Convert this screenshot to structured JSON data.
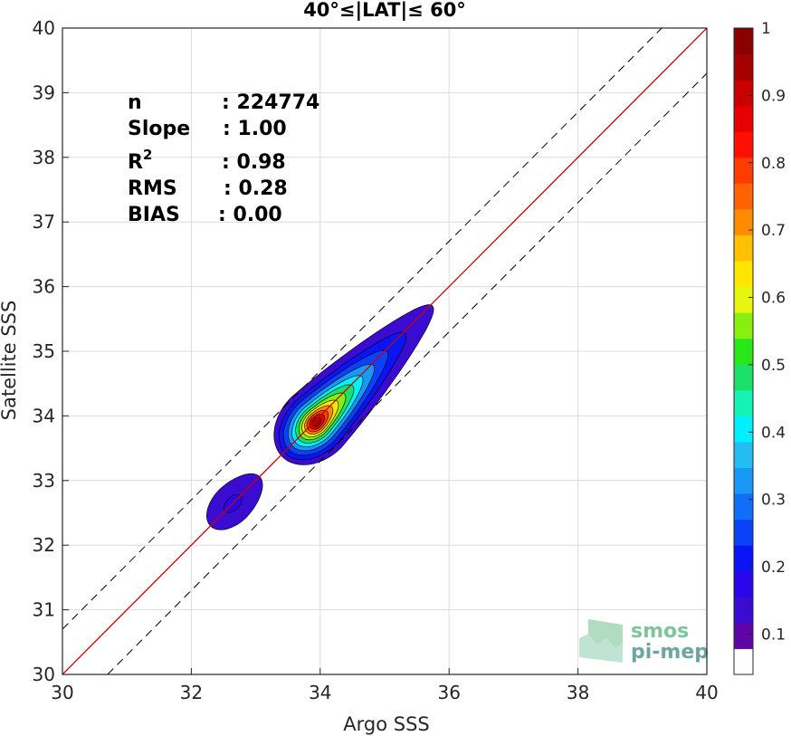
{
  "chart_data": {
    "type": "heatmap",
    "title": "40°≤|LAT|≤ 60°",
    "xlabel": "Argo SSS",
    "ylabel": "Satellite SSS",
    "xlim": [
      30,
      40
    ],
    "ylim": [
      30,
      40
    ],
    "x_ticks": [
      "30",
      "32",
      "34",
      "36",
      "38",
      "40"
    ],
    "y_ticks": [
      "30",
      "31",
      "32",
      "33",
      "34",
      "35",
      "36",
      "37",
      "38",
      "39",
      "40"
    ],
    "grid": true,
    "reference_line": {
      "slope": 1,
      "intercept": 0,
      "color": "#cc0000"
    },
    "bounds_lines": {
      "offset": 0.7,
      "style": "dashed"
    },
    "stats": [
      {
        "label": "n",
        "value": ": 224774"
      },
      {
        "label": "Slope",
        "value": ": 1.00"
      },
      {
        "label": "R",
        "sup": "2",
        "value": ": 0.98"
      },
      {
        "label": "RMS",
        "value": ": 0.28"
      },
      {
        "label": "BIAS",
        "value": ": 0.00"
      }
    ],
    "density_clusters": [
      {
        "center": [
          33.92,
          33.92
        ],
        "peak": 0.95
      },
      {
        "center": [
          32.65,
          32.65
        ],
        "peak": 0.2
      }
    ],
    "colorbar": {
      "ticks": [
        "0.1",
        "0.2",
        "0.3",
        "0.4",
        "0.5",
        "0.6",
        "0.7",
        "0.8",
        "0.9",
        "1"
      ],
      "colors": [
        "#ffffff",
        "#5e05a8",
        "#3a0bd0",
        "#2a06e8",
        "#0b14f5",
        "#0a43f7",
        "#0f6ff7",
        "#1898f7",
        "#23bdf3",
        "#00f0ff",
        "#15f2b4",
        "#1de06a",
        "#28e81a",
        "#88ef10",
        "#e8f510",
        "#ffe600",
        "#ffc000",
        "#ff8c00",
        "#ff6400",
        "#ff3c00",
        "#ff1000",
        "#e60000",
        "#c80000",
        "#a50000",
        "#8a0000"
      ]
    }
  },
  "logo": {
    "line1": "smos",
    "line2": "pi-mep"
  }
}
